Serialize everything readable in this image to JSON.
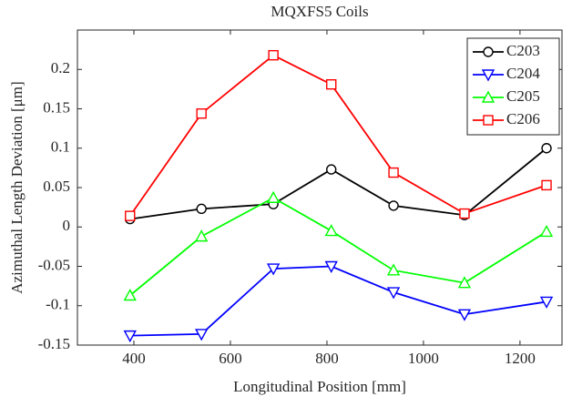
{
  "chart_data": {
    "type": "line",
    "title": "MQXFS5 Coils",
    "x_label": "Longitudinal Position [mm]",
    "y_label": "Azimuthal Length Deviation [μm]",
    "x": [
      392,
      540,
      689,
      809,
      938,
      1085,
      1255
    ],
    "series": [
      {
        "name": "C203",
        "color": "#000000",
        "marker": "circle",
        "values": [
          0.01,
          0.023,
          0.029,
          0.073,
          0.027,
          0.015,
          0.1
        ]
      },
      {
        "name": "C204",
        "color": "#0000ff",
        "marker": "triangle-down",
        "values": [
          -0.138,
          -0.136,
          -0.053,
          -0.05,
          -0.083,
          -0.111,
          -0.095
        ]
      },
      {
        "name": "C205",
        "color": "#00ff00",
        "marker": "triangle-up",
        "values": [
          -0.087,
          -0.012,
          0.037,
          -0.005,
          -0.055,
          -0.071,
          -0.006
        ]
      },
      {
        "name": "C206",
        "color": "#ff0000",
        "marker": "square",
        "values": [
          0.014,
          0.144,
          0.218,
          0.181,
          0.069,
          0.017,
          0.053
        ]
      }
    ],
    "xlim": [
      283,
      1287
    ],
    "xticks": [
      400,
      600,
      800,
      1000,
      1200
    ],
    "ylim": [
      -0.15,
      0.25
    ],
    "yticks": [
      -0.15,
      -0.1,
      -0.05,
      0,
      0.05,
      0.1,
      0.15,
      0.2
    ],
    "grid": false,
    "legend": "top-right"
  }
}
